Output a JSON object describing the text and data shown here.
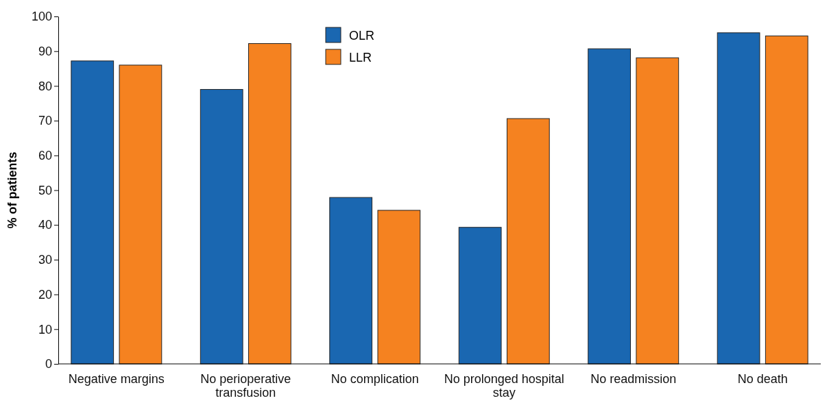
{
  "chart_data": {
    "type": "bar",
    "ylabel": "% of patients",
    "categories": [
      "Negative margins",
      "No perioperative transfusion",
      "No complication",
      "No prolonged hospital stay",
      "No readmission",
      "No death"
    ],
    "series": [
      {
        "name": "OLR",
        "color": "#1a67b1",
        "values": [
          87.2,
          79,
          47.9,
          39.3,
          90.7,
          95.3
        ]
      },
      {
        "name": "LLR",
        "color": "#f58220",
        "values": [
          86,
          92.2,
          44.2,
          70.6,
          88.1,
          94.4
        ]
      }
    ],
    "ylim": [
      0,
      100
    ],
    "yticks": [
      0,
      10,
      20,
      30,
      40,
      50,
      60,
      70,
      80,
      90,
      100
    ],
    "grid": false,
    "legend": "top"
  }
}
